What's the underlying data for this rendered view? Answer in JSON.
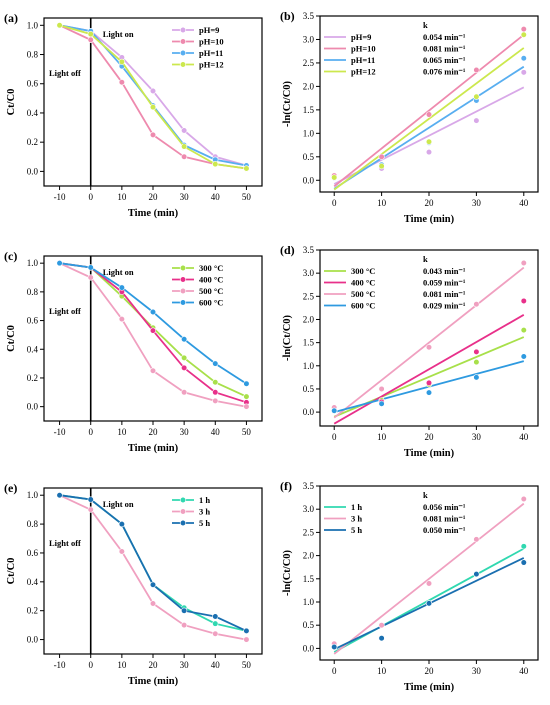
{
  "chart_data": [
    {
      "panel": "(a)",
      "type": "line",
      "xlabel": "Time (min)",
      "ylabel": "Ct/C0",
      "xlim": [
        -15,
        55
      ],
      "ylim": [
        -0.1,
        1.05
      ],
      "xticks": [
        "-10",
        "0",
        "10",
        "20",
        "30",
        "40",
        "50"
      ],
      "yticks": [
        "0.0",
        "0.2",
        "0.4",
        "0.6",
        "0.8",
        "1.0"
      ],
      "x": [
        -10,
        0,
        10,
        20,
        30,
        40,
        50
      ],
      "annotations": [
        "Light on",
        "Light off"
      ],
      "legend_position": "top-right",
      "series": [
        {
          "name": "pH=9",
          "color": "#d8a8e8",
          "values": [
            1.0,
            0.96,
            0.78,
            0.55,
            0.28,
            0.1,
            0.04
          ]
        },
        {
          "name": "pH=10",
          "color": "#ee8aae",
          "values": [
            1.0,
            0.9,
            0.61,
            0.25,
            0.1,
            0.05,
            0.02
          ]
        },
        {
          "name": "pH=11",
          "color": "#58aef0",
          "values": [
            1.0,
            0.96,
            0.72,
            0.45,
            0.18,
            0.08,
            0.04
          ]
        },
        {
          "name": "pH=12",
          "color": "#cce84e",
          "values": [
            1.0,
            0.94,
            0.75,
            0.44,
            0.17,
            0.05,
            0.02
          ]
        }
      ]
    },
    {
      "panel": "(b)",
      "type": "scatter",
      "xlabel": "Time (min)",
      "ylabel": "-ln(Ct/C0)",
      "xlim": [
        -3,
        43
      ],
      "ylim": [
        -0.25,
        3.5
      ],
      "xticks": [
        "0",
        "10",
        "20",
        "30",
        "40"
      ],
      "yticks": [
        "0.0",
        "0.5",
        "1.0",
        "1.5",
        "2.0",
        "2.5",
        "3.0",
        "3.5"
      ],
      "x": [
        0,
        10,
        20,
        30,
        40
      ],
      "k_header": "k",
      "legend_position": "top-left",
      "series": [
        {
          "name": "pH=9",
          "color": "#d8a8e8",
          "k": "0.054 min⁻¹",
          "values": [
            0.04,
            0.25,
            0.6,
            1.27,
            2.3
          ],
          "fit": [
            -0.08,
            1.98
          ]
        },
        {
          "name": "pH=10",
          "color": "#ee8aae",
          "k": "0.081 min⁻¹",
          "values": [
            0.1,
            0.5,
            1.4,
            2.35,
            3.22
          ],
          "fit": [
            -0.13,
            3.1
          ]
        },
        {
          "name": "pH=11",
          "color": "#58aef0",
          "k": "0.065 min⁻¹",
          "values": [
            0.05,
            0.33,
            0.8,
            1.7,
            2.6
          ],
          "fit": [
            -0.18,
            2.42
          ]
        },
        {
          "name": "pH=12",
          "color": "#cce84e",
          "k": "0.076 min⁻¹",
          "values": [
            0.06,
            0.3,
            0.82,
            1.78,
            3.1
          ],
          "fit": [
            -0.2,
            2.82
          ]
        }
      ]
    },
    {
      "panel": "(c)",
      "type": "line",
      "xlabel": "Time (min)",
      "ylabel": "Ct/C0",
      "xlim": [
        -15,
        55
      ],
      "ylim": [
        -0.1,
        1.05
      ],
      "xticks": [
        "-10",
        "0",
        "10",
        "20",
        "30",
        "40",
        "50"
      ],
      "yticks": [
        "0.0",
        "0.2",
        "0.4",
        "0.6",
        "0.8",
        "1.0"
      ],
      "x": [
        -10,
        0,
        10,
        20,
        30,
        40,
        50
      ],
      "annotations": [
        "Light on",
        "Light off"
      ],
      "legend_position": "top-right",
      "series": [
        {
          "name": "300 °C",
          "color": "#a8e04a",
          "values": [
            1.0,
            0.97,
            0.77,
            0.55,
            0.34,
            0.17,
            0.07
          ]
        },
        {
          "name": "400 °C",
          "color": "#e8308a",
          "values": [
            1.0,
            0.97,
            0.8,
            0.53,
            0.27,
            0.1,
            0.03
          ]
        },
        {
          "name": "500 °C",
          "color": "#f0a0c0",
          "values": [
            1.0,
            0.9,
            0.61,
            0.25,
            0.1,
            0.04,
            0.0
          ]
        },
        {
          "name": "600 °C",
          "color": "#2e9ae0",
          "values": [
            1.0,
            0.97,
            0.83,
            0.66,
            0.47,
            0.3,
            0.16
          ]
        }
      ]
    },
    {
      "panel": "(d)",
      "type": "scatter",
      "xlabel": "Time (min)",
      "ylabel": "-ln(Ct/C0)",
      "xlim": [
        -3,
        43
      ],
      "ylim": [
        -0.3,
        3.5
      ],
      "xticks": [
        "0",
        "10",
        "20",
        "30",
        "40"
      ],
      "yticks": [
        "0.0",
        "0.5",
        "1.0",
        "1.5",
        "2.0",
        "2.5",
        "3.0",
        "3.5"
      ],
      "x": [
        0,
        10,
        20,
        30,
        40
      ],
      "k_header": "k",
      "legend_position": "top-left",
      "series": [
        {
          "name": "300 °C",
          "color": "#a8e04a",
          "k": "0.043 min⁻¹",
          "values": [
            0.03,
            0.25,
            0.6,
            1.08,
            1.77
          ],
          "fit": [
            -0.1,
            1.62
          ]
        },
        {
          "name": "400 °C",
          "color": "#e8308a",
          "k": "0.059 min⁻¹",
          "values": [
            0.03,
            0.22,
            0.63,
            1.3,
            2.4
          ],
          "fit": [
            -0.25,
            2.1
          ]
        },
        {
          "name": "500 °C",
          "color": "#f0a0c0",
          "k": "0.081 min⁻¹",
          "values": [
            0.1,
            0.5,
            1.4,
            2.33,
            3.22
          ],
          "fit": [
            -0.12,
            3.12
          ]
        },
        {
          "name": "600 °C",
          "color": "#2e9ae0",
          "k": "0.029 min⁻¹",
          "values": [
            0.03,
            0.18,
            0.42,
            0.75,
            1.2
          ],
          "fit": [
            0.0,
            1.1
          ]
        }
      ]
    },
    {
      "panel": "(e)",
      "type": "line",
      "xlabel": "Time (min)",
      "ylabel": "Ct/C0",
      "xlim": [
        -15,
        55
      ],
      "ylim": [
        -0.1,
        1.05
      ],
      "xticks": [
        "-10",
        "0",
        "10",
        "20",
        "30",
        "40",
        "50"
      ],
      "yticks": [
        "0.0",
        "0.2",
        "0.4",
        "0.6",
        "0.8",
        "1.0"
      ],
      "x": [
        -10,
        0,
        10,
        20,
        30,
        40,
        50
      ],
      "annotations": [
        "Light on",
        "Light off"
      ],
      "legend_position": "top-right",
      "series": [
        {
          "name": "1 h",
          "color": "#30d8b0",
          "values": [
            1.0,
            0.97,
            0.8,
            0.38,
            0.22,
            0.11,
            0.06
          ]
        },
        {
          "name": "3 h",
          "color": "#f0a0c0",
          "values": [
            1.0,
            0.9,
            0.61,
            0.25,
            0.1,
            0.04,
            0.0
          ]
        },
        {
          "name": "5 h",
          "color": "#1a6fb0",
          "values": [
            1.0,
            0.97,
            0.8,
            0.38,
            0.2,
            0.16,
            0.06
          ]
        }
      ]
    },
    {
      "panel": "(f)",
      "type": "scatter",
      "xlabel": "Time (min)",
      "ylabel": "-ln(Ct/C0)",
      "xlim": [
        -3,
        43
      ],
      "ylim": [
        -0.25,
        3.5
      ],
      "xticks": [
        "0",
        "10",
        "20",
        "30",
        "40"
      ],
      "yticks": [
        "0.0",
        "0.5",
        "1.0",
        "1.5",
        "2.0",
        "2.5",
        "3.0",
        "3.5"
      ],
      "x": [
        0,
        10,
        20,
        30,
        40
      ],
      "k_header": "k",
      "legend_position": "top-left",
      "series": [
        {
          "name": "1 h",
          "color": "#30d8b0",
          "k": "0.056 min⁻¹",
          "values": [
            0.03,
            0.22,
            0.97,
            1.6,
            2.2
          ],
          "fit": [
            -0.08,
            2.15
          ]
        },
        {
          "name": "3 h",
          "color": "#f0a0c0",
          "k": "0.081 min⁻¹",
          "values": [
            0.1,
            0.5,
            1.4,
            2.35,
            3.22
          ],
          "fit": [
            -0.12,
            3.12
          ]
        },
        {
          "name": "5 h",
          "color": "#1a6fb0",
          "k": "0.050 min⁻¹",
          "values": [
            0.03,
            0.22,
            0.97,
            1.6,
            1.85
          ],
          "fit": [
            -0.02,
            1.95
          ]
        }
      ]
    }
  ]
}
